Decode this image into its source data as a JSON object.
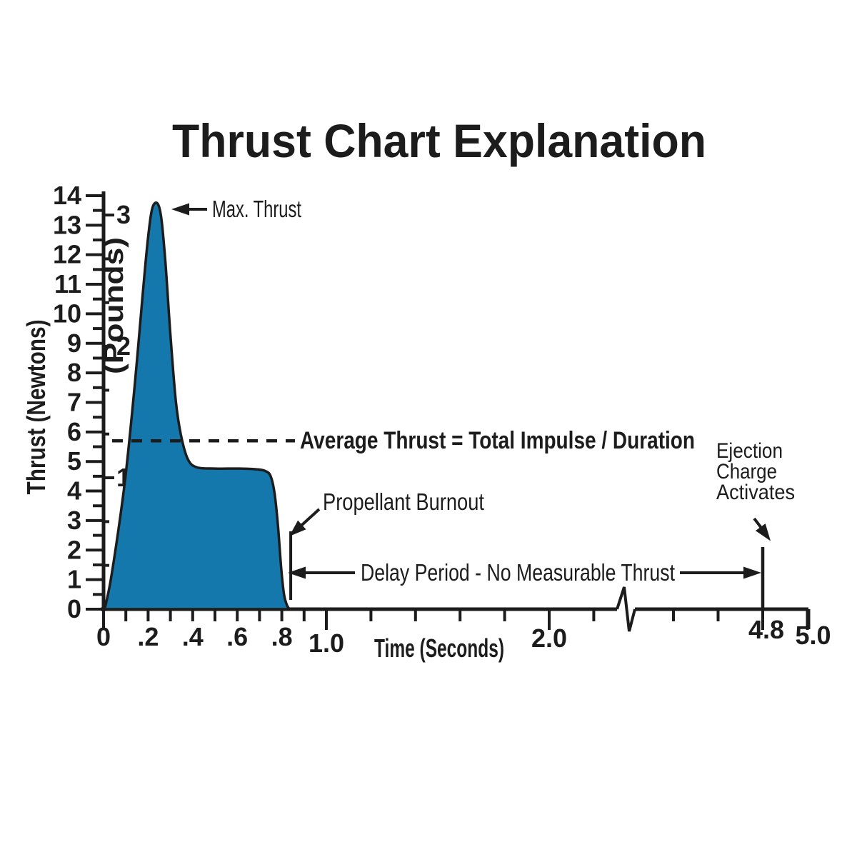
{
  "title": "Thrust Chart Explanation",
  "colors": {
    "curve_fill": "#1478ad",
    "ink": "#1c1c1c",
    "background": "#ffffff"
  },
  "axis_labels": {
    "x": "Time (Seconds)",
    "y_left": "Thrust (Newtons)",
    "y_right": "(Pounds)"
  },
  "annotations": {
    "max_thrust": "Max. Thrust",
    "average": "Average Thrust = Total Impulse / Duration",
    "propellant_burnout": "Propellant Burnout",
    "delay_period": "Delay Period - No Measurable Thrust",
    "ejection_line1": "Ejection",
    "ejection_line2": "Charge",
    "ejection_line3": "Activates"
  },
  "chart_data": {
    "type": "area",
    "title": "Thrust Chart Explanation",
    "xlabel": "Time (Seconds)",
    "ylabel_left": "Thrust (Newtons)",
    "ylabel_right": "(Pounds)",
    "grid": false,
    "x_axis": {
      "unit": "seconds",
      "range_shown": [
        0,
        5.0
      ],
      "break_between": [
        2.3,
        4.4
      ],
      "ticks": [
        {
          "v": 0.0,
          "major": true,
          "label": "0"
        },
        {
          "v": 0.1
        },
        {
          "v": 0.2,
          "label": ".2"
        },
        {
          "v": 0.3
        },
        {
          "v": 0.4,
          "label": ".4"
        },
        {
          "v": 0.5
        },
        {
          "v": 0.6,
          "label": ".6"
        },
        {
          "v": 0.7
        },
        {
          "v": 0.8,
          "label": ".8"
        },
        {
          "v": 0.9
        },
        {
          "v": 1.0,
          "major": true,
          "label": "1.0"
        },
        {
          "v": 1.2
        },
        {
          "v": 1.4
        },
        {
          "v": 1.6
        },
        {
          "v": 1.8
        },
        {
          "v": 2.0,
          "major": true,
          "label": "2.0"
        },
        {
          "v": 2.2
        },
        {
          "v": 4.4
        },
        {
          "v": 4.6
        },
        {
          "v": 4.8,
          "major": true,
          "label": "4.8"
        },
        {
          "v": 5.0,
          "major": true,
          "label": "5.0"
        }
      ]
    },
    "y_axis_newtons": {
      "min": 0,
      "max": 14,
      "major_step": 1,
      "minor_step": 0.5,
      "labels": [
        0,
        1,
        2,
        3,
        4,
        5,
        6,
        7,
        8,
        9,
        10,
        11,
        12,
        13,
        14
      ]
    },
    "y_axis_pounds": {
      "labels": [
        1,
        2,
        3
      ],
      "minor_divisions_per_pound": 3,
      "newtons_per_pound": 4.448
    },
    "series": [
      {
        "name": "thrust_curve",
        "points_time_s_vs_newtons": [
          [
            0.005,
            0
          ],
          [
            0.03,
            0.9
          ],
          [
            0.065,
            2.6
          ],
          [
            0.1,
            4.6
          ],
          [
            0.14,
            7.6
          ],
          [
            0.175,
            10.6
          ],
          [
            0.2,
            12.6
          ],
          [
            0.222,
            13.65
          ],
          [
            0.252,
            13.55
          ],
          [
            0.275,
            12.0
          ],
          [
            0.3,
            9.3
          ],
          [
            0.325,
            7.0
          ],
          [
            0.35,
            5.8
          ],
          [
            0.38,
            5.05
          ],
          [
            0.42,
            4.8
          ],
          [
            0.5,
            4.76
          ],
          [
            0.6,
            4.76
          ],
          [
            0.68,
            4.74
          ],
          [
            0.725,
            4.68
          ],
          [
            0.75,
            4.5
          ],
          [
            0.768,
            3.9
          ],
          [
            0.783,
            2.8
          ],
          [
            0.797,
            1.4
          ],
          [
            0.81,
            0.5
          ],
          [
            0.824,
            0.12
          ],
          [
            0.836,
            0
          ]
        ]
      }
    ],
    "max_thrust_newtons": 13.6,
    "average_thrust_newtons": 5.7,
    "sustain_thrust_newtons": 4.75,
    "propellant_burnout_time_s": 0.84,
    "ejection_charge_time_s": 4.8,
    "delay_arrow_height_newtons": 1.23
  }
}
